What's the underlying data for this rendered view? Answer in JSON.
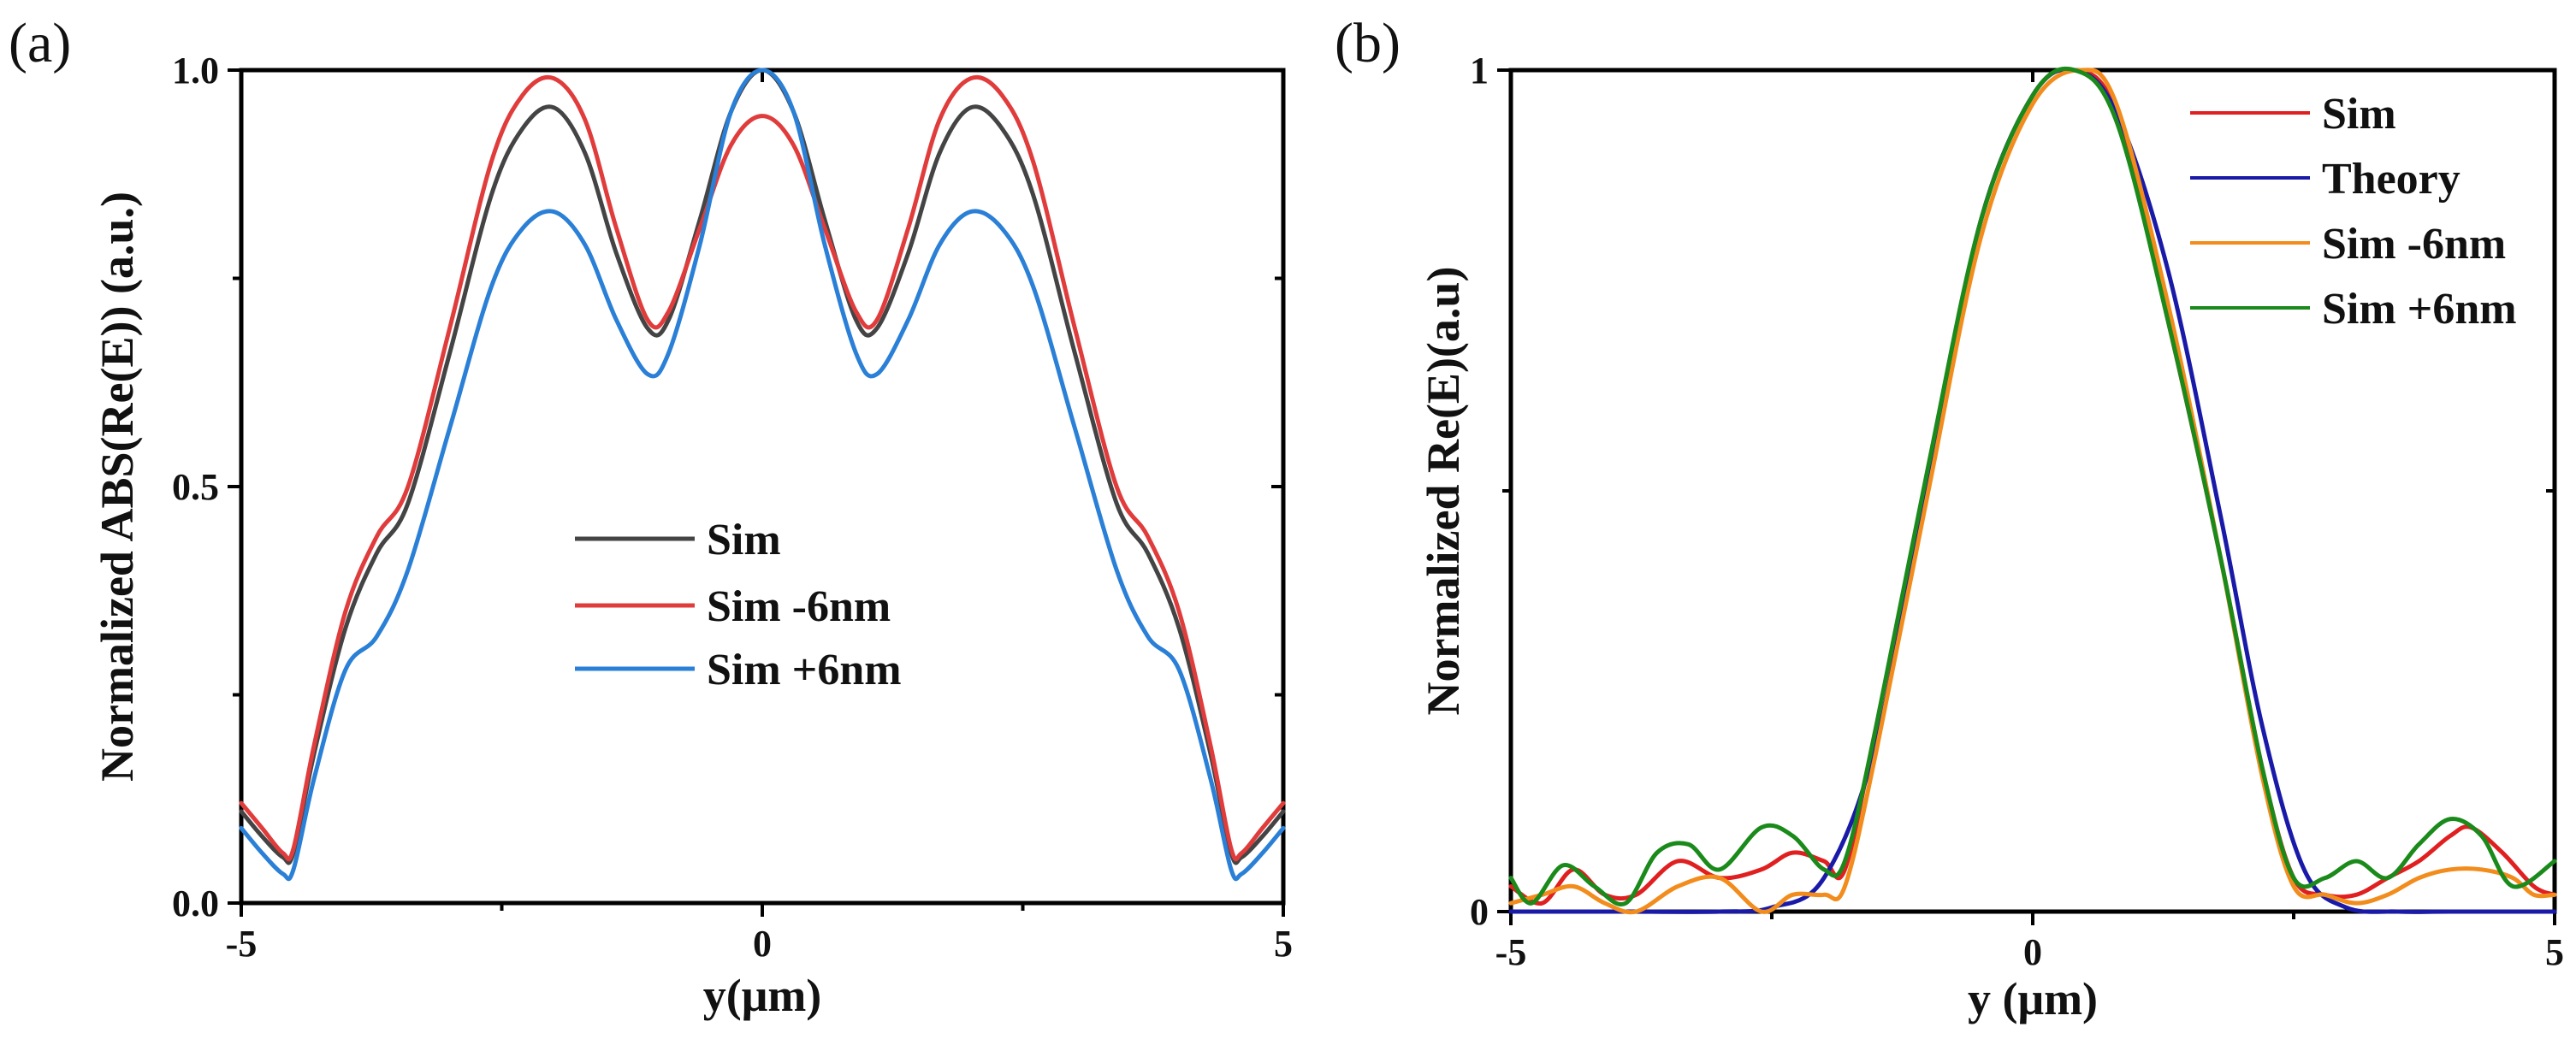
{
  "chart_data": [
    {
      "panel_label": "(a)",
      "type": "line",
      "xlabel": "y(μm)",
      "ylabel": "Normalized ABS(Re(E)) (a.u.)",
      "xlim": [
        -5,
        5
      ],
      "ylim": [
        0,
        1
      ],
      "x_tick_labels": [
        "-5",
        "0",
        "5"
      ],
      "x_ticks": [
        -5,
        0,
        5
      ],
      "y_tick_labels": [
        "0.0",
        "0.5",
        "1.0"
      ],
      "y_ticks": [
        0,
        0.5,
        1.0
      ],
      "legend_position": "center",
      "series": [
        {
          "name": "Sim",
          "color": "#444444",
          "x": [
            -5,
            -4.8,
            -4.6,
            -4.5,
            -4.3,
            -4,
            -3.7,
            -3.4,
            -3,
            -2.6,
            -2.3,
            -2,
            -1.7,
            -1.4,
            -1.1,
            -0.9,
            -0.6,
            -0.3,
            0,
            0.3,
            0.6,
            0.9,
            1.1,
            1.4,
            1.7,
            2,
            2.3,
            2.6,
            3,
            3.4,
            3.7,
            4,
            4.3,
            4.5,
            4.6,
            4.8,
            5
          ],
          "y": [
            0.11,
            0.08,
            0.055,
            0.06,
            0.18,
            0.33,
            0.42,
            0.48,
            0.66,
            0.85,
            0.93,
            0.955,
            0.9,
            0.78,
            0.69,
            0.7,
            0.82,
            0.95,
            1.0,
            0.95,
            0.82,
            0.7,
            0.69,
            0.78,
            0.9,
            0.955,
            0.93,
            0.85,
            0.66,
            0.48,
            0.42,
            0.33,
            0.18,
            0.06,
            0.055,
            0.08,
            0.11
          ]
        },
        {
          "name": "Sim -6nm",
          "color": "#e03c3c",
          "x": [
            -5,
            -4.8,
            -4.6,
            -4.5,
            -4.3,
            -4,
            -3.7,
            -3.4,
            -3,
            -2.6,
            -2.3,
            -2,
            -1.7,
            -1.4,
            -1.1,
            -0.9,
            -0.6,
            -0.3,
            0,
            0.3,
            0.6,
            0.9,
            1.1,
            1.4,
            1.7,
            2,
            2.3,
            2.6,
            3,
            3.4,
            3.7,
            4,
            4.3,
            4.5,
            4.6,
            4.8,
            5
          ],
          "y": [
            0.12,
            0.09,
            0.06,
            0.065,
            0.19,
            0.35,
            0.44,
            0.5,
            0.69,
            0.89,
            0.97,
            0.99,
            0.94,
            0.81,
            0.7,
            0.71,
            0.81,
            0.91,
            0.945,
            0.91,
            0.81,
            0.71,
            0.7,
            0.81,
            0.94,
            0.99,
            0.97,
            0.89,
            0.69,
            0.5,
            0.44,
            0.35,
            0.19,
            0.065,
            0.06,
            0.09,
            0.12
          ]
        },
        {
          "name": "Sim +6nm",
          "color": "#2a7fd6",
          "x": [
            -5,
            -4.8,
            -4.6,
            -4.5,
            -4.3,
            -4,
            -3.7,
            -3.4,
            -3,
            -2.6,
            -2.3,
            -2,
            -1.7,
            -1.4,
            -1.1,
            -0.9,
            -0.6,
            -0.3,
            0,
            0.3,
            0.6,
            0.9,
            1.1,
            1.4,
            1.7,
            2,
            2.3,
            2.6,
            3,
            3.4,
            3.7,
            4,
            4.3,
            4.5,
            4.6,
            4.8,
            5
          ],
          "y": [
            0.09,
            0.06,
            0.035,
            0.04,
            0.15,
            0.28,
            0.32,
            0.4,
            0.57,
            0.74,
            0.81,
            0.83,
            0.79,
            0.7,
            0.635,
            0.66,
            0.79,
            0.95,
            1.0,
            0.95,
            0.79,
            0.66,
            0.635,
            0.7,
            0.79,
            0.83,
            0.81,
            0.74,
            0.57,
            0.4,
            0.32,
            0.28,
            0.15,
            0.04,
            0.035,
            0.06,
            0.09
          ]
        }
      ]
    },
    {
      "panel_label": "(b)",
      "type": "line",
      "xlabel": "y (μm)",
      "ylabel": "Normalized Re(E)(a.u)",
      "xlim": [
        -5,
        5
      ],
      "ylim": [
        0,
        1
      ],
      "x_tick_labels": [
        "-5",
        "0",
        "5"
      ],
      "x_ticks": [
        -5,
        0,
        5
      ],
      "y_tick_labels": [
        "0",
        "1"
      ],
      "y_ticks": [
        0,
        1
      ],
      "legend_position": "top-right",
      "series": [
        {
          "name": "Sim",
          "color": "#e02020",
          "x": [
            -5,
            -4.7,
            -4.4,
            -4.1,
            -3.8,
            -3.4,
            -3.0,
            -2.6,
            -2.3,
            -2.0,
            -1.8,
            -1.5,
            -1.0,
            -0.5,
            0,
            0.4,
            0.8,
            1.3,
            1.8,
            2.2,
            2.5,
            2.8,
            3.1,
            3.4,
            3.7,
            4.0,
            4.2,
            4.5,
            4.8,
            5
          ],
          "y": [
            0.03,
            0.01,
            0.05,
            0.02,
            0.02,
            0.06,
            0.04,
            0.05,
            0.07,
            0.06,
            0.05,
            0.22,
            0.52,
            0.82,
            0.97,
            1.0,
            0.95,
            0.7,
            0.42,
            0.17,
            0.04,
            0.02,
            0.02,
            0.04,
            0.06,
            0.09,
            0.1,
            0.07,
            0.03,
            0.02
          ]
        },
        {
          "name": "Theory",
          "color": "#1a1aa8",
          "x": [
            -5,
            -4,
            -3,
            -2.5,
            -2.0,
            -1.5,
            -1.0,
            -0.5,
            0,
            0.4,
            0.8,
            1.3,
            1.8,
            2.2,
            2.6,
            3.0,
            3.5,
            4,
            5
          ],
          "y": [
            0,
            0,
            0,
            0.005,
            0.04,
            0.2,
            0.52,
            0.82,
            0.97,
            1.0,
            0.95,
            0.76,
            0.47,
            0.22,
            0.05,
            0.005,
            0,
            0,
            0
          ]
        },
        {
          "name": "Sim -6nm",
          "color": "#f28c1c",
          "x": [
            -5,
            -4.7,
            -4.4,
            -4.1,
            -3.8,
            -3.4,
            -3.0,
            -2.6,
            -2.3,
            -2.0,
            -1.8,
            -1.5,
            -1.0,
            -0.5,
            0,
            0.45,
            0.8,
            1.3,
            1.8,
            2.2,
            2.5,
            2.8,
            3.1,
            3.4,
            3.7,
            4.0,
            4.3,
            4.6,
            4.8,
            5
          ],
          "y": [
            0.01,
            0.02,
            0.03,
            0.01,
            0.0,
            0.03,
            0.04,
            0.0,
            0.02,
            0.02,
            0.03,
            0.19,
            0.5,
            0.8,
            0.96,
            1.0,
            0.96,
            0.72,
            0.42,
            0.16,
            0.03,
            0.02,
            0.01,
            0.02,
            0.04,
            0.05,
            0.05,
            0.04,
            0.02,
            0.02
          ]
        },
        {
          "name": "Sim +6nm",
          "color": "#1a8a1a",
          "x": [
            -5,
            -4.8,
            -4.5,
            -4.2,
            -3.9,
            -3.6,
            -3.3,
            -3.0,
            -2.6,
            -2.3,
            -2.0,
            -1.8,
            -1.5,
            -1.0,
            -0.5,
            0,
            0.4,
            0.8,
            1.3,
            1.8,
            2.2,
            2.5,
            2.8,
            3.1,
            3.4,
            3.7,
            4.0,
            4.3,
            4.6,
            5
          ],
          "y": [
            0.04,
            0.01,
            0.055,
            0.03,
            0.01,
            0.07,
            0.08,
            0.05,
            0.1,
            0.09,
            0.05,
            0.06,
            0.22,
            0.53,
            0.82,
            0.97,
            1.0,
            0.94,
            0.7,
            0.42,
            0.17,
            0.04,
            0.04,
            0.06,
            0.04,
            0.08,
            0.11,
            0.09,
            0.03,
            0.06
          ]
        }
      ]
    }
  ]
}
